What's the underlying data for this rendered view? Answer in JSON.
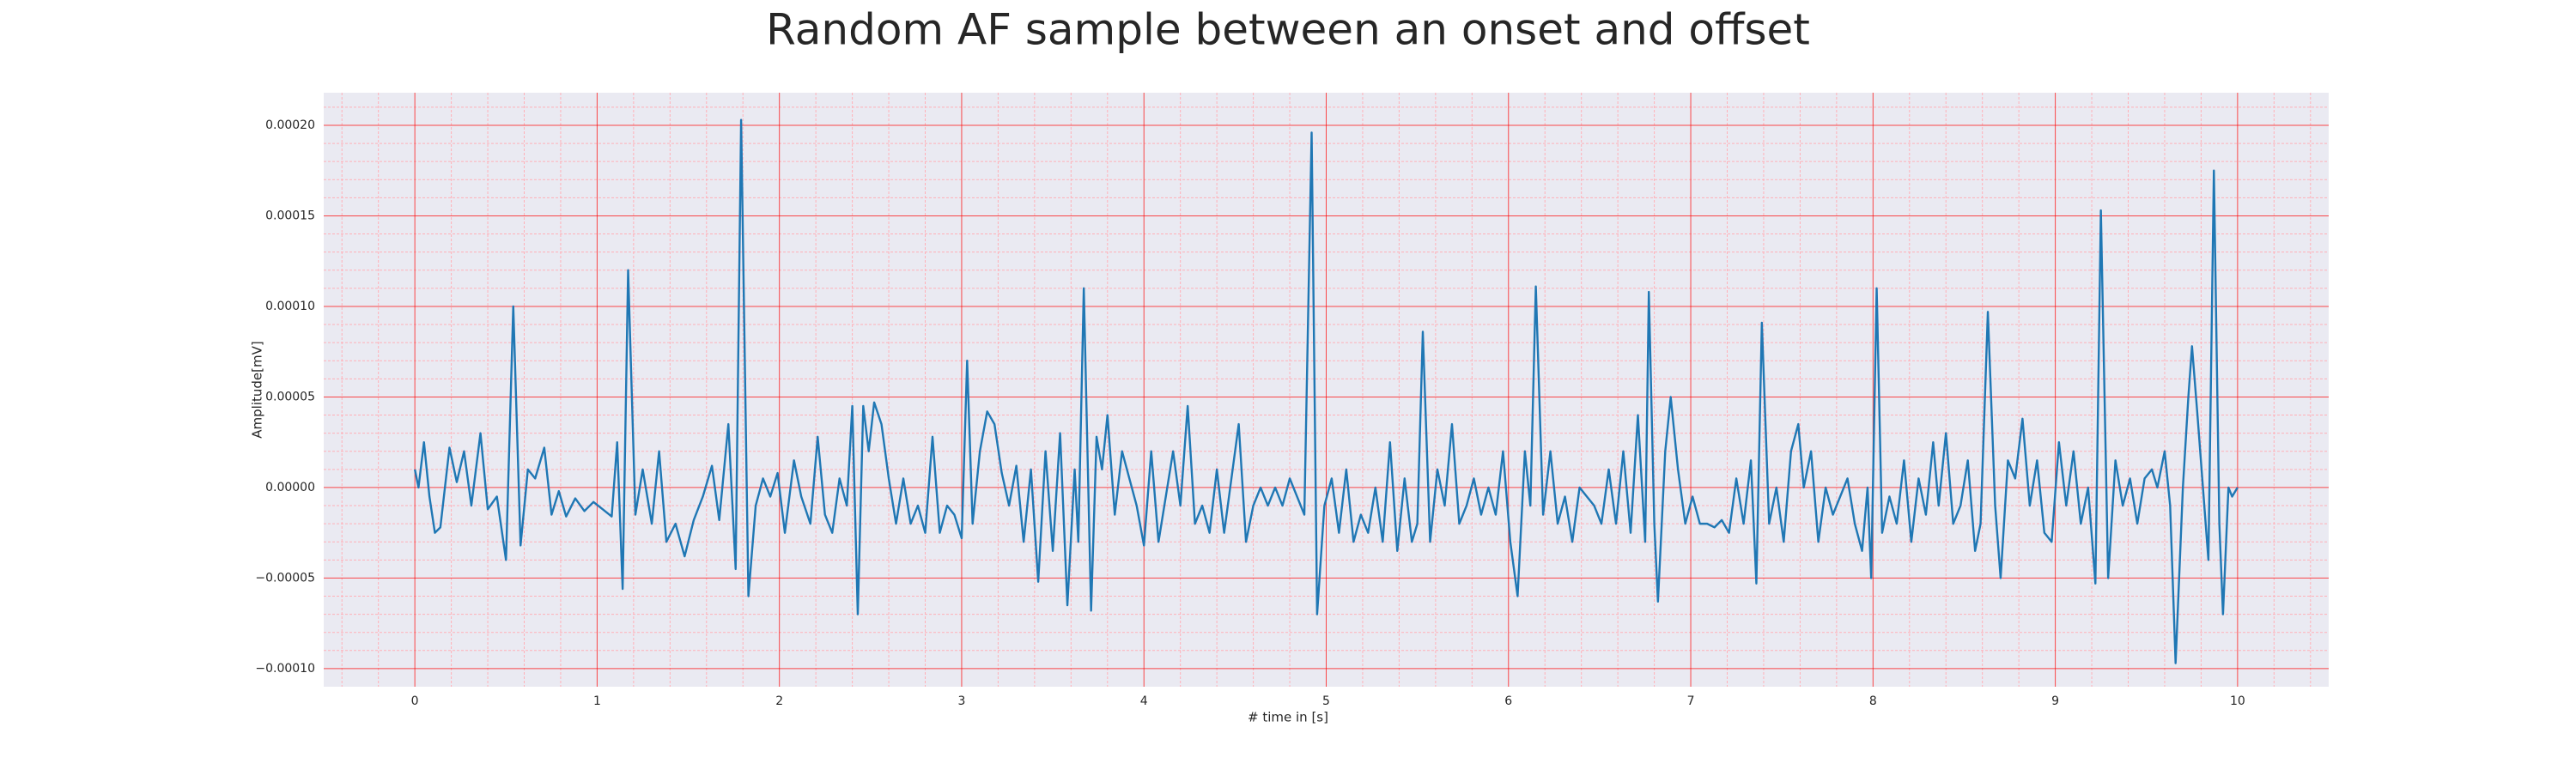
{
  "chart_data": {
    "type": "line",
    "title": "Random AF sample between an onset and offset",
    "xlabel": "# time in [s]",
    "ylabel": "Amplitude[mV]",
    "xlim": [
      -0.5,
      10.5
    ],
    "ylim": [
      -0.00011,
      0.000218
    ],
    "xticks": [
      0,
      1,
      2,
      3,
      4,
      5,
      6,
      7,
      8,
      9,
      10
    ],
    "yticks": [
      {
        "value": -0.0001,
        "label": "−0.00010"
      },
      {
        "value": -5e-05,
        "label": "−0.00005"
      },
      {
        "value": 0,
        "label": "0.00000"
      },
      {
        "value": 5e-05,
        "label": "0.00005"
      },
      {
        "value": 0.0001,
        "label": "0.00010"
      },
      {
        "value": 0.00015,
        "label": "0.00015"
      },
      {
        "value": 0.0002,
        "label": "0.00020"
      }
    ],
    "xminorticks": [
      -0.4,
      -0.2,
      0.2,
      0.4,
      0.6,
      0.8,
      1.2,
      1.4,
      1.6,
      1.8,
      2.2,
      2.4,
      2.6,
      2.8,
      3.2,
      3.4,
      3.6,
      3.8,
      4.2,
      4.4,
      4.6,
      4.8,
      5.2,
      5.4,
      5.6,
      5.8,
      6.2,
      6.4,
      6.6,
      6.8,
      7.2,
      7.4,
      7.6,
      7.8,
      8.2,
      8.4,
      8.6,
      8.8,
      9.2,
      9.4,
      9.6,
      9.8,
      10.2,
      10.4
    ],
    "yminorticks": [
      -9e-05,
      -8e-05,
      -7e-05,
      -6e-05,
      -4e-05,
      -3e-05,
      -2e-05,
      -1e-05,
      1e-05,
      2e-05,
      3e-05,
      4e-05,
      6e-05,
      7e-05,
      8e-05,
      9e-05,
      0.00011,
      0.00012,
      0.00013,
      0.00014,
      0.00016,
      0.00017,
      0.00018,
      0.00019,
      0.00021
    ],
    "grid": true,
    "grid_color": "#ff0000",
    "minor_grid_color": "#ffb0b8",
    "background": "#eaeaf2",
    "x": [
      0,
      0.02,
      0.05,
      0.08,
      0.11,
      0.14,
      0.19,
      0.23,
      0.27,
      0.31,
      0.36,
      0.4,
      0.45,
      0.5,
      0.54,
      0.58,
      0.62,
      0.66,
      0.71,
      0.75,
      0.79,
      0.83,
      0.88,
      0.93,
      0.98,
      1.03,
      1.08,
      1.11,
      1.14,
      1.17,
      1.21,
      1.25,
      1.3,
      1.34,
      1.38,
      1.43,
      1.48,
      1.53,
      1.58,
      1.63,
      1.67,
      1.72,
      1.76,
      1.79,
      1.83,
      1.87,
      1.91,
      1.95,
      1.99,
      2.03,
      2.08,
      2.12,
      2.17,
      2.21,
      2.25,
      2.29,
      2.33,
      2.37,
      2.4,
      2.43,
      2.46,
      2.49,
      2.52,
      2.56,
      2.6,
      2.64,
      2.68,
      2.72,
      2.76,
      2.8,
      2.84,
      2.88,
      2.92,
      2.96,
      3,
      3.03,
      3.06,
      3.1,
      3.14,
      3.18,
      3.22,
      3.26,
      3.3,
      3.34,
      3.38,
      3.42,
      3.46,
      3.5,
      3.54,
      3.58,
      3.62,
      3.64,
      3.67,
      3.71,
      3.74,
      3.77,
      3.8,
      3.84,
      3.88,
      3.92,
      3.96,
      4,
      4.04,
      4.08,
      4.12,
      4.16,
      4.2,
      4.24,
      4.28,
      4.32,
      4.36,
      4.4,
      4.44,
      4.48,
      4.52,
      4.56,
      4.6,
      4.64,
      4.68,
      4.72,
      4.76,
      4.8,
      4.84,
      4.88,
      4.92,
      4.95,
      4.99,
      5.03,
      5.07,
      5.11,
      5.15,
      5.19,
      5.23,
      5.27,
      5.31,
      5.35,
      5.39,
      5.43,
      5.47,
      5.5,
      5.53,
      5.57,
      5.61,
      5.65,
      5.69,
      5.73,
      5.77,
      5.81,
      5.85,
      5.89,
      5.93,
      5.97,
      6.01,
      6.05,
      6.09,
      6.12,
      6.15,
      6.19,
      6.23,
      6.27,
      6.31,
      6.35,
      6.39,
      6.43,
      6.47,
      6.51,
      6.55,
      6.59,
      6.63,
      6.67,
      6.71,
      6.75,
      6.77,
      6.8,
      6.82,
      6.86,
      6.89,
      6.93,
      6.97,
      7.01,
      7.05,
      7.09,
      7.13,
      7.17,
      7.21,
      7.25,
      7.29,
      7.33,
      7.36,
      7.39,
      7.43,
      7.47,
      7.51,
      7.55,
      7.59,
      7.62,
      7.66,
      7.7,
      7.74,
      7.78,
      7.82,
      7.86,
      7.9,
      7.94,
      7.97,
      7.99,
      8.02,
      8.05,
      8.09,
      8.13,
      8.17,
      8.21,
      8.25,
      8.29,
      8.33,
      8.36,
      8.4,
      8.44,
      8.48,
      8.52,
      8.56,
      8.59,
      8.63,
      8.67,
      8.7,
      8.74,
      8.78,
      8.82,
      8.86,
      8.9,
      8.94,
      8.98,
      9.02,
      9.06,
      9.1,
      9.14,
      9.18,
      9.22,
      9.25,
      9.29,
      9.33,
      9.37,
      9.41,
      9.45,
      9.49,
      9.53,
      9.56,
      9.6,
      9.63,
      9.66,
      9.7,
      9.73,
      9.75,
      9.78,
      9.81,
      9.84,
      9.87,
      9.9,
      9.92,
      9.95,
      9.97,
      10
    ],
    "series": [
      {
        "color": "#1f77b4",
        "values": [
          1e-05,
          0,
          2.5e-05,
          -5e-06,
          -2.5e-05,
          -2.2e-05,
          2.2e-05,
          3e-06,
          2e-05,
          -1e-05,
          3e-05,
          -1.2e-05,
          -5e-06,
          -4e-05,
          0.0001,
          -3.2e-05,
          1e-05,
          5e-06,
          2.2e-05,
          -1.5e-05,
          -2e-06,
          -1.6e-05,
          -6e-06,
          -1.3e-05,
          -8e-06,
          -1.2e-05,
          -1.6e-05,
          2.5e-05,
          -5.6e-05,
          0.00012,
          -1.5e-05,
          1e-05,
          -2e-05,
          2e-05,
          -3e-05,
          -2e-05,
          -3.8e-05,
          -1.8e-05,
          -5e-06,
          1.2e-05,
          -1.8e-05,
          3.5e-05,
          -4.5e-05,
          0.000203,
          -6e-05,
          -1e-05,
          5e-06,
          -5e-06,
          8e-06,
          -2.5e-05,
          1.5e-05,
          -5e-06,
          -2e-05,
          2.8e-05,
          -1.5e-05,
          -2.5e-05,
          5e-06,
          -1e-05,
          4.5e-05,
          -7e-05,
          4.5e-05,
          2e-05,
          4.7e-05,
          3.5e-05,
          5e-06,
          -2e-05,
          5e-06,
          -2e-05,
          -1e-05,
          -2.5e-05,
          2.8e-05,
          -2.5e-05,
          -1e-05,
          -1.5e-05,
          -2.8e-05,
          7e-05,
          -2e-05,
          2e-05,
          4.2e-05,
          3.5e-05,
          8e-06,
          -1e-05,
          1.2e-05,
          -3e-05,
          1e-05,
          -5.2e-05,
          2e-05,
          -3.5e-05,
          3e-05,
          -6.5e-05,
          1e-05,
          -3e-05,
          0.00011,
          -6.8e-05,
          2.8e-05,
          1e-05,
          4e-05,
          -1.5e-05,
          2e-05,
          5e-06,
          -1e-05,
          -3.2e-05,
          2e-05,
          -3e-05,
          -5e-06,
          2e-05,
          -1e-05,
          4.5e-05,
          -2e-05,
          -1e-05,
          -2.5e-05,
          1e-05,
          -2.5e-05,
          5e-06,
          3.5e-05,
          -3e-05,
          -1e-05,
          0,
          -1e-05,
          0,
          -1e-05,
          5e-06,
          -5e-06,
          -1.5e-05,
          0.000196,
          -7e-05,
          -1e-05,
          5e-06,
          -2.5e-05,
          1e-05,
          -3e-05,
          -1.5e-05,
          -2.5e-05,
          0,
          -3e-05,
          2.5e-05,
          -3.5e-05,
          5e-06,
          -3e-05,
          -2e-05,
          8.6e-05,
          -3e-05,
          1e-05,
          -1e-05,
          3.5e-05,
          -2e-05,
          -1e-05,
          5e-06,
          -1.5e-05,
          0,
          -1.5e-05,
          2e-05,
          -3e-05,
          -6e-05,
          2e-05,
          -1e-05,
          0.000111,
          -1.5e-05,
          2e-05,
          -2e-05,
          -5e-06,
          -3e-05,
          0,
          -5e-06,
          -1e-05,
          -2e-05,
          1e-05,
          -2e-05,
          2e-05,
          -2.5e-05,
          4e-05,
          -3e-05,
          0.000108,
          -2e-05,
          -6.3e-05,
          2e-05,
          5e-05,
          1e-05,
          -2e-05,
          -5e-06,
          -2e-05,
          -2e-05,
          -2.2e-05,
          -1.8e-05,
          -2.5e-05,
          5e-06,
          -2e-05,
          1.5e-05,
          -5.3e-05,
          9.1e-05,
          -2e-05,
          0,
          -3e-05,
          2e-05,
          3.5e-05,
          0,
          2e-05,
          -3e-05,
          0,
          -1.5e-05,
          -5e-06,
          5e-06,
          -2e-05,
          -3.5e-05,
          0,
          -5e-05,
          0.00011,
          -2.5e-05,
          -5e-06,
          -2e-05,
          1.5e-05,
          -3e-05,
          5e-06,
          -1.5e-05,
          2.5e-05,
          -1e-05,
          3e-05,
          -2e-05,
          -1e-05,
          1.5e-05,
          -3.5e-05,
          -2e-05,
          9.7e-05,
          -1e-05,
          -5e-05,
          1.5e-05,
          5e-06,
          3.8e-05,
          -1e-05,
          1.5e-05,
          -2.5e-05,
          -3e-05,
          2.5e-05,
          -1e-05,
          2e-05,
          -2e-05,
          0,
          -5.3e-05,
          0.000153,
          -5e-05,
          1.5e-05,
          -1e-05,
          5e-06,
          -2e-05,
          5e-06,
          1e-05,
          0,
          2e-05,
          -1e-05,
          -9.7e-05,
          0,
          5e-05,
          7.8e-05,
          4e-05,
          0,
          -4e-05,
          0.000175,
          -2e-05,
          -7e-05,
          0,
          -5e-06,
          0
        ]
      }
    ]
  }
}
